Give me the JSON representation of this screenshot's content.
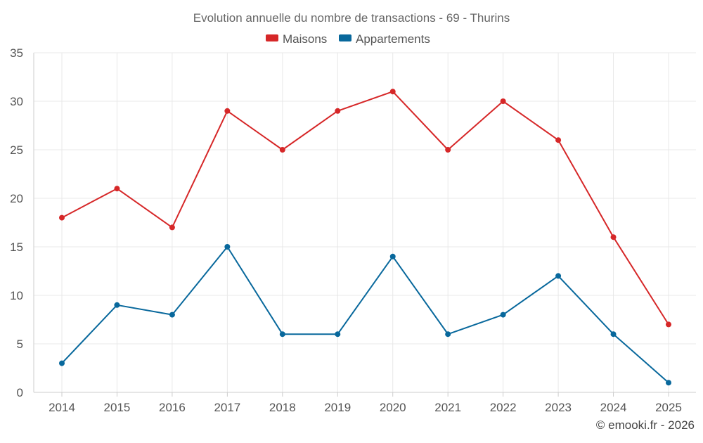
{
  "chart_data": {
    "type": "line",
    "title": "Evolution annuelle du nombre de transactions - 69 - Thurins",
    "categories": [
      "2014",
      "2015",
      "2016",
      "2017",
      "2018",
      "2019",
      "2020",
      "2021",
      "2022",
      "2023",
      "2024",
      "2025"
    ],
    "series": [
      {
        "name": "Maisons",
        "color": "#d62728",
        "values": [
          18,
          21,
          17,
          29,
          25,
          29,
          31,
          25,
          30,
          26,
          16,
          7
        ]
      },
      {
        "name": "Appartements",
        "color": "#08689c",
        "values": [
          3,
          9,
          8,
          15,
          6,
          6,
          14,
          6,
          8,
          12,
          6,
          1
        ]
      }
    ],
    "ylim": [
      0,
      35
    ],
    "yticks": [
      0,
      5,
      10,
      15,
      20,
      25,
      30,
      35
    ],
    "grid": true,
    "legend_position": "top-center",
    "credit": "© emooki.fr - 2026"
  }
}
